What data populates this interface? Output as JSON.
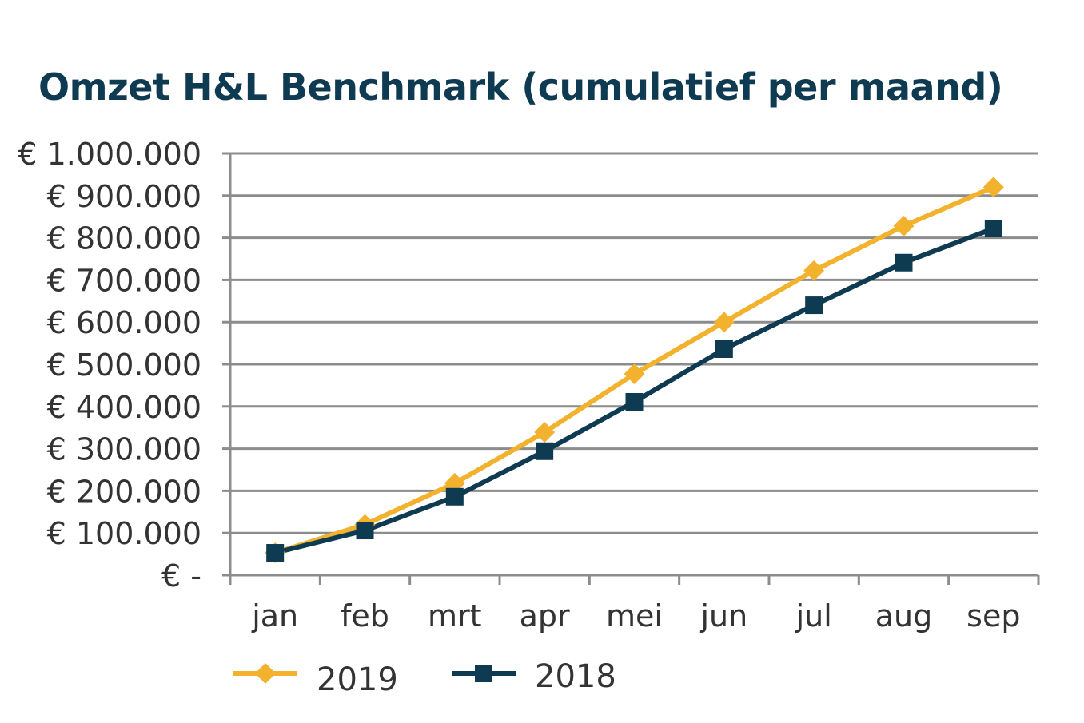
{
  "chart_data": {
    "type": "line",
    "title": "Omzet H&L Benchmark (cumulatief per maand)",
    "xlabel": "",
    "ylabel": "",
    "categories": [
      "jan",
      "feb",
      "mrt",
      "apr",
      "mei",
      "jun",
      "jul",
      "aug",
      "sep"
    ],
    "ylim": [
      0,
      1000000
    ],
    "yticks": [
      0,
      100000,
      200000,
      300000,
      400000,
      500000,
      600000,
      700000,
      800000,
      900000,
      1000000
    ],
    "ytick_labels": [
      "€ -",
      "€ 100.000",
      "€ 200.000",
      "€ 300.000",
      "€ 400.000",
      "€ 500.000",
      "€ 600.000",
      "€ 700.000",
      "€ 800.000",
      "€ 900.000",
      "€ 1.000.000"
    ],
    "grid": true,
    "legend_position": "bottom-left",
    "series": [
      {
        "name": "2019",
        "color": "#f2b22e",
        "marker": "diamond",
        "values": [
          53000,
          120000,
          218000,
          339000,
          477000,
          600000,
          722000,
          828000,
          920000
        ]
      },
      {
        "name": "2018",
        "color": "#0f3b52",
        "marker": "square",
        "values": [
          53000,
          106000,
          186000,
          294000,
          411000,
          536000,
          640000,
          741000,
          822000
        ]
      }
    ]
  }
}
